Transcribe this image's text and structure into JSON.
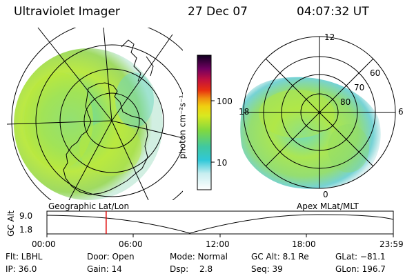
{
  "header": {
    "instrument": "Ultraviolet Imager",
    "date": "27 Dec 07",
    "time": "04:07:32 UT"
  },
  "colorbar": {
    "unit_label": "photon cm⁻²s⁻¹",
    "ticks": [
      "100",
      "10"
    ]
  },
  "polar_labels": {
    "top": "12",
    "left": "18",
    "right": "6",
    "bottom": "0",
    "lat_60": "60",
    "lat_70": "70",
    "lat_80": "80"
  },
  "panel_labels": {
    "left": "Geographic Lat/Lon",
    "right": "Apex MLat/MLT"
  },
  "alt_plot": {
    "axis_label": "GC Alt",
    "y_ticks": [
      "9.0",
      "1.8"
    ],
    "x_ticks": [
      "00:00",
      "06:00",
      "12:00",
      "18:00",
      "23:59"
    ],
    "current_time_fraction": 0.171
  },
  "info": {
    "flt": "Flt: LBHL",
    "ip": "IP: 36.0",
    "door": "Door: Open",
    "gain": "Gain: 14",
    "mode": "Mode: Normal",
    "dsp_label": "Dsp:",
    "dsp_value": "2.8",
    "gc_alt": "GC Alt: 8.1 Re",
    "seq": "Seq: 39",
    "glat": "GLat: −81.1",
    "glon": "GLon: 196.7"
  },
  "colors": {
    "current_time_marker": "#e00000"
  }
}
